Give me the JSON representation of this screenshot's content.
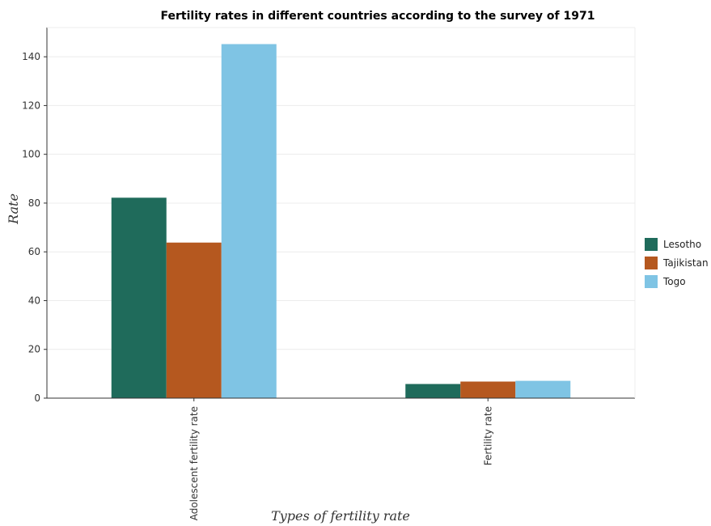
{
  "chart_data": {
    "type": "bar",
    "title": "Fertility rates in different countries according to the survey of 1971",
    "xlabel": "Types of fertility rate",
    "ylabel": "Rate",
    "categories": [
      "Adolescent fertility rate",
      "Fertility rate"
    ],
    "series": [
      {
        "name": "Lesotho",
        "color": "#1f6b5b",
        "values": [
          82.2,
          5.8
        ]
      },
      {
        "name": "Tajikistan",
        "color": "#b5581f",
        "values": [
          63.8,
          6.8
        ]
      },
      {
        "name": "Togo",
        "color": "#7fc4e4",
        "values": [
          145.2,
          7.1
        ]
      }
    ],
    "ylim": [
      0,
      152
    ],
    "yticks": [
      0,
      20,
      40,
      60,
      80,
      100,
      120,
      140
    ],
    "grid": true,
    "legend_position": "right"
  }
}
